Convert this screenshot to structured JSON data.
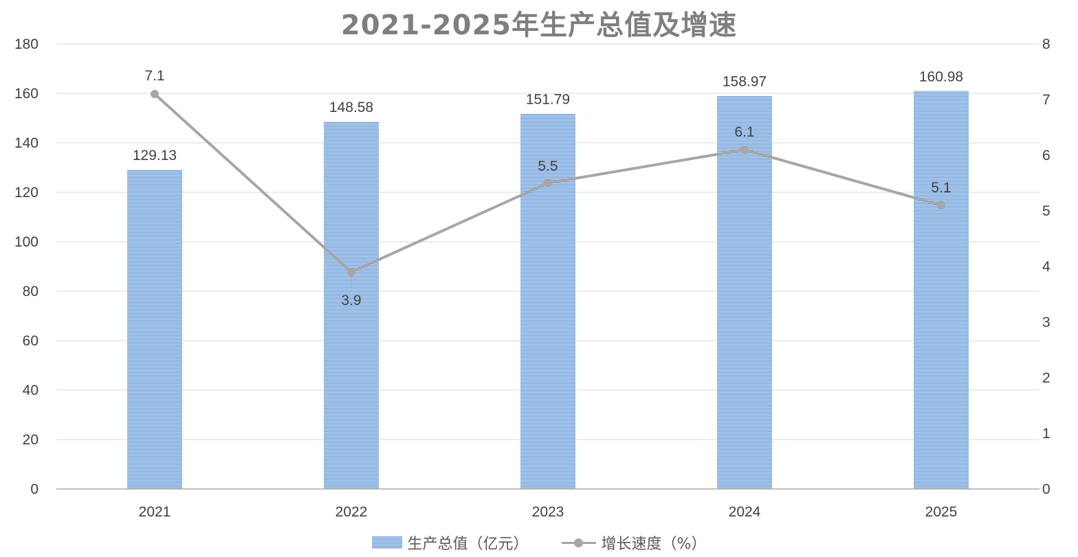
{
  "chart_data": {
    "type": "bar",
    "title": "2021-2025年生产总值及增速",
    "categories": [
      "2021",
      "2022",
      "2023",
      "2024",
      "2025"
    ],
    "series": [
      {
        "name": "生产总值（亿元）",
        "type": "bar",
        "axis": "left",
        "values": [
          129.13,
          148.58,
          151.79,
          158.97,
          160.98
        ],
        "labels": [
          "129.13",
          "148.58",
          "151.79",
          "158.97",
          "160.98"
        ],
        "color": "#6f9fd8"
      },
      {
        "name": "增长速度（%）",
        "type": "line",
        "axis": "right",
        "values": [
          7.1,
          3.9,
          5.5,
          6.1,
          5.1
        ],
        "labels": [
          "7.1",
          "3.9",
          "5.5",
          "6.1",
          "5.1"
        ],
        "color": "#a6a6a6"
      }
    ],
    "y_left": {
      "min": 0,
      "max": 180,
      "step": 20
    },
    "y_right": {
      "min": 0,
      "max": 8,
      "step": 1
    },
    "xlabel": "",
    "ylabel": "",
    "grid": true,
    "legend_position": "bottom"
  }
}
